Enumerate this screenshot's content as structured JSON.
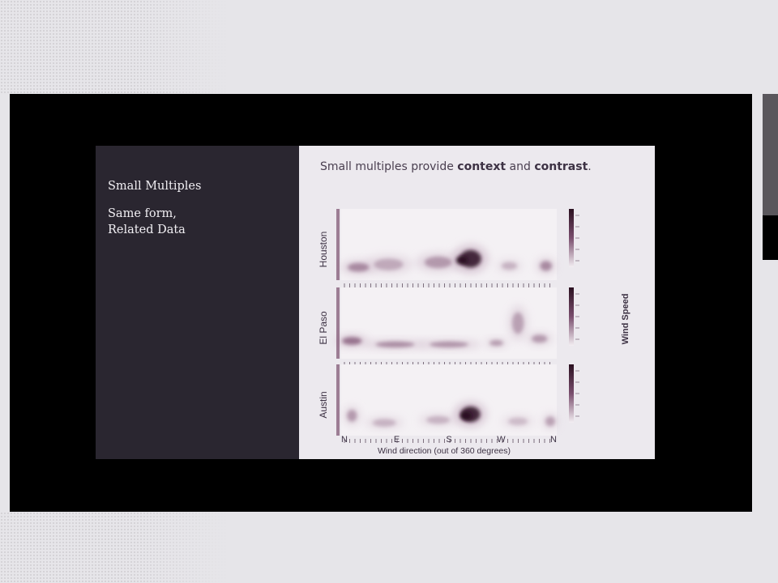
{
  "slide": {
    "left_title": "Small Multiples",
    "left_line1": "Same form,",
    "left_line2": "Related Data",
    "heading_pre": "Small multiples provide ",
    "heading_b1": "context",
    "heading_mid": " and ",
    "heading_b2": "contrast",
    "heading_post": "."
  },
  "chart_data": {
    "type": "heatmap",
    "panels": [
      "Houston",
      "El Paso",
      "Austin"
    ],
    "xlabel": "Wind direction (out of 360 degrees)",
    "x_tick_labels": [
      "N",
      "E",
      "S",
      "W",
      "N"
    ],
    "color_legend_label": "Wind Speed",
    "colors": {
      "dark": "#2b1020",
      "mid": "#7a4e6e",
      "light": "#d9c9d6"
    }
  }
}
